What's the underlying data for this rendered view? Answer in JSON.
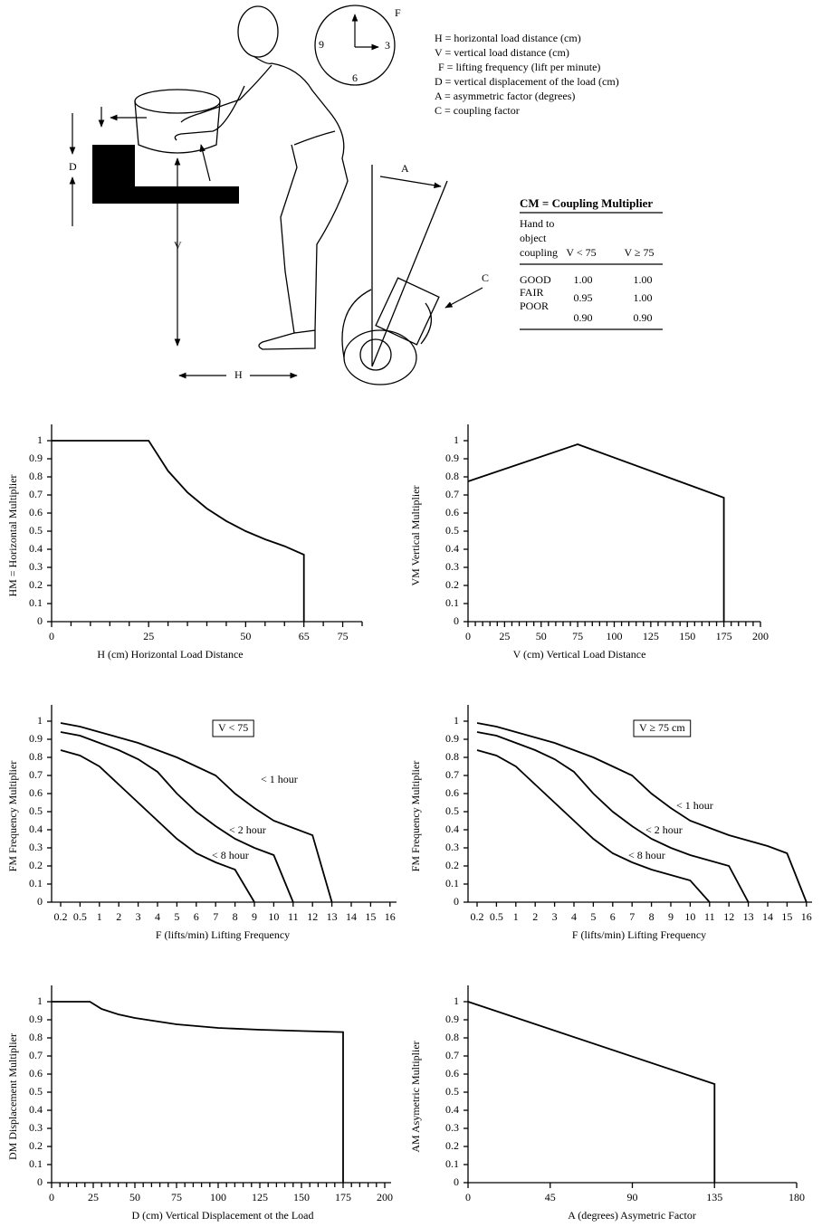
{
  "diagram": {
    "definitions": [
      "H = horizontal load distance (cm)",
      "V = vertical load distance (cm)",
      "F = lifting frequency (lift per minute)",
      "D = vertical displacement of the load (cm)",
      "A = asymmetric factor (degrees)",
      "C = coupling factor"
    ],
    "clock": {
      "top": "F",
      "left": "9",
      "right": "3",
      "bottom": "6"
    },
    "labels": {
      "d": "D",
      "v": "V",
      "h": "H",
      "a": "A",
      "c": "C"
    },
    "coupling_table": {
      "title": "CM =  Coupling Multiplier",
      "row_header": [
        "Hand to",
        "object",
        "coupling"
      ],
      "columns": [
        "V < 75",
        "V ≥ 75"
      ],
      "rows": [
        [
          "GOOD",
          "1.00",
          "1.00"
        ],
        [
          "FAIR",
          "0.95",
          "1.00"
        ],
        [
          "POOR",
          "0.90",
          "0.90"
        ]
      ]
    }
  },
  "chart_data": [
    {
      "type": "line",
      "y_label": "HM = Horizontal Multiplier",
      "x_label": "H (cm) Horizontal Load Distance",
      "x": [
        0,
        25,
        30,
        35,
        40,
        45,
        50,
        55,
        60,
        65,
        65
      ],
      "values": [
        1,
        1,
        0.833,
        0.714,
        0.625,
        0.556,
        0.5,
        0.455,
        0.417,
        0.37,
        0
      ],
      "color": "#000000",
      "xlim": [
        0,
        80
      ],
      "ylim": [
        0,
        1.05
      ],
      "xticks": [
        0,
        25,
        50,
        65,
        75
      ],
      "xminorticks": [
        5,
        10,
        15,
        20,
        30,
        35,
        40,
        45,
        55,
        60,
        70,
        80
      ],
      "yticks": [
        0,
        0.1,
        0.2,
        0.3,
        0.4,
        0.5,
        0.6,
        0.7,
        0.8,
        0.9,
        1
      ]
    },
    {
      "type": "line",
      "y_label": "VM Vertical Multiplier",
      "x_label": "V (cm) Vertical Load Distance",
      "x": [
        0,
        75,
        175,
        175
      ],
      "values": [
        0.775,
        0.98,
        0.685,
        0
      ],
      "color": "#000000",
      "xlim": [
        0,
        200
      ],
      "ylim": [
        0,
        1.05
      ],
      "xticks": [
        0,
        25,
        50,
        75,
        100,
        125,
        150,
        175,
        200
      ],
      "xminorticks": [
        5,
        10,
        15,
        20,
        30,
        35,
        40,
        45,
        55,
        60,
        65,
        70,
        80,
        85,
        90,
        95,
        105,
        110,
        115,
        120,
        130,
        135,
        140,
        145,
        155,
        160,
        165,
        170,
        180,
        185,
        190,
        195
      ],
      "yticks": [
        0,
        0.1,
        0.2,
        0.3,
        0.4,
        0.5,
        0.6,
        0.7,
        0.8,
        0.9,
        1
      ]
    },
    {
      "type": "line",
      "y_label": "FM Frequency Multiplier",
      "x_label": "F (lifts/min) Lifting Frequency",
      "annotation": "V < 75",
      "categories": [
        "0.2",
        "0.5",
        "1",
        "2",
        "3",
        "4",
        "5",
        "6",
        "7",
        "8",
        "9",
        "10",
        "11",
        "12",
        "13",
        "14",
        "15",
        "16"
      ],
      "series": [
        {
          "name": "< 1 hour",
          "color": "#000000",
          "values": [
            0.99,
            0.97,
            0.94,
            0.91,
            0.88,
            0.84,
            0.8,
            0.75,
            0.7,
            0.6,
            0.52,
            0.45,
            0.41,
            0.37,
            0,
            null,
            null,
            null
          ]
        },
        {
          "name": "< 2 hour",
          "color": "#000000",
          "values": [
            0.94,
            0.92,
            0.88,
            0.84,
            0.79,
            0.72,
            0.6,
            0.5,
            0.42,
            0.35,
            0.3,
            0.26,
            0,
            null,
            null,
            null,
            null,
            null
          ]
        },
        {
          "name": "< 8 hour",
          "color": "#000000",
          "values": [
            0.84,
            0.81,
            0.75,
            0.65,
            0.55,
            0.45,
            0.35,
            0.27,
            0.22,
            0.18,
            0,
            null,
            null,
            null,
            null,
            null,
            null,
            null
          ]
        }
      ],
      "ylim": [
        0,
        1.05
      ],
      "yticks": [
        0,
        0.1,
        0.2,
        0.3,
        0.4,
        0.5,
        0.6,
        0.7,
        0.8,
        0.9,
        1
      ]
    },
    {
      "type": "line",
      "y_label": "FM Frequency Multiplier",
      "x_label": "F (lifts/min) Lifting Frequency",
      "annotation": "V ≥ 75 cm",
      "categories": [
        "0.2",
        "0.5",
        "1",
        "2",
        "3",
        "4",
        "5",
        "6",
        "7",
        "8",
        "9",
        "10",
        "11",
        "12",
        "13",
        "14",
        "15",
        "16"
      ],
      "series": [
        {
          "name": "< 1 hour",
          "color": "#000000",
          "values": [
            0.99,
            0.97,
            0.94,
            0.91,
            0.88,
            0.84,
            0.8,
            0.75,
            0.7,
            0.6,
            0.52,
            0.45,
            0.41,
            0.37,
            0.34,
            0.31,
            0.27,
            0
          ]
        },
        {
          "name": "< 2 hour",
          "color": "#000000",
          "values": [
            0.94,
            0.92,
            0.88,
            0.84,
            0.79,
            0.72,
            0.6,
            0.5,
            0.42,
            0.35,
            0.3,
            0.26,
            0.23,
            0.2,
            0,
            null,
            null,
            null
          ]
        },
        {
          "name": "< 8 hour",
          "color": "#000000",
          "values": [
            0.84,
            0.81,
            0.75,
            0.65,
            0.55,
            0.45,
            0.35,
            0.27,
            0.22,
            0.18,
            0.15,
            0.12,
            0,
            null,
            null,
            null,
            null,
            null
          ]
        }
      ],
      "ylim": [
        0,
        1.05
      ],
      "yticks": [
        0,
        0.1,
        0.2,
        0.3,
        0.4,
        0.5,
        0.6,
        0.7,
        0.8,
        0.9,
        1
      ]
    },
    {
      "type": "line",
      "y_label": "DM Displacement Multiplier",
      "x_label": "D (cm) Vertical Displacement ot the Load",
      "x": [
        0,
        23,
        30,
        40,
        50,
        75,
        100,
        125,
        150,
        175,
        175
      ],
      "values": [
        1,
        1,
        0.96,
        0.93,
        0.91,
        0.875,
        0.855,
        0.845,
        0.838,
        0.832,
        0
      ],
      "color": "#000000",
      "xlim": [
        0,
        200
      ],
      "ylim": [
        0,
        1.05
      ],
      "xticks": [
        0,
        25,
        50,
        75,
        100,
        125,
        150,
        175,
        200
      ],
      "xminorticks": [
        5,
        10,
        15,
        20,
        30,
        35,
        40,
        45,
        55,
        60,
        65,
        70,
        80,
        85,
        90,
        95,
        105,
        110,
        115,
        120,
        130,
        135,
        140,
        145,
        155,
        160,
        165,
        170,
        180,
        185,
        190,
        195
      ],
      "yticks": [
        0,
        0.1,
        0.2,
        0.3,
        0.4,
        0.5,
        0.6,
        0.7,
        0.8,
        0.9,
        1
      ]
    },
    {
      "type": "line",
      "y_label": "AM Asymetric Multiplier",
      "x_label": "A (degrees) Asymetric Factor",
      "x": [
        0,
        135,
        135
      ],
      "values": [
        1,
        0.545,
        0
      ],
      "color": "#000000",
      "xlim": [
        0,
        180
      ],
      "ylim": [
        0,
        1.05
      ],
      "xticks": [
        0,
        45,
        90,
        135,
        180
      ],
      "yticks": [
        0,
        0.1,
        0.2,
        0.3,
        0.4,
        0.5,
        0.6,
        0.7,
        0.8,
        0.9,
        1
      ]
    }
  ]
}
